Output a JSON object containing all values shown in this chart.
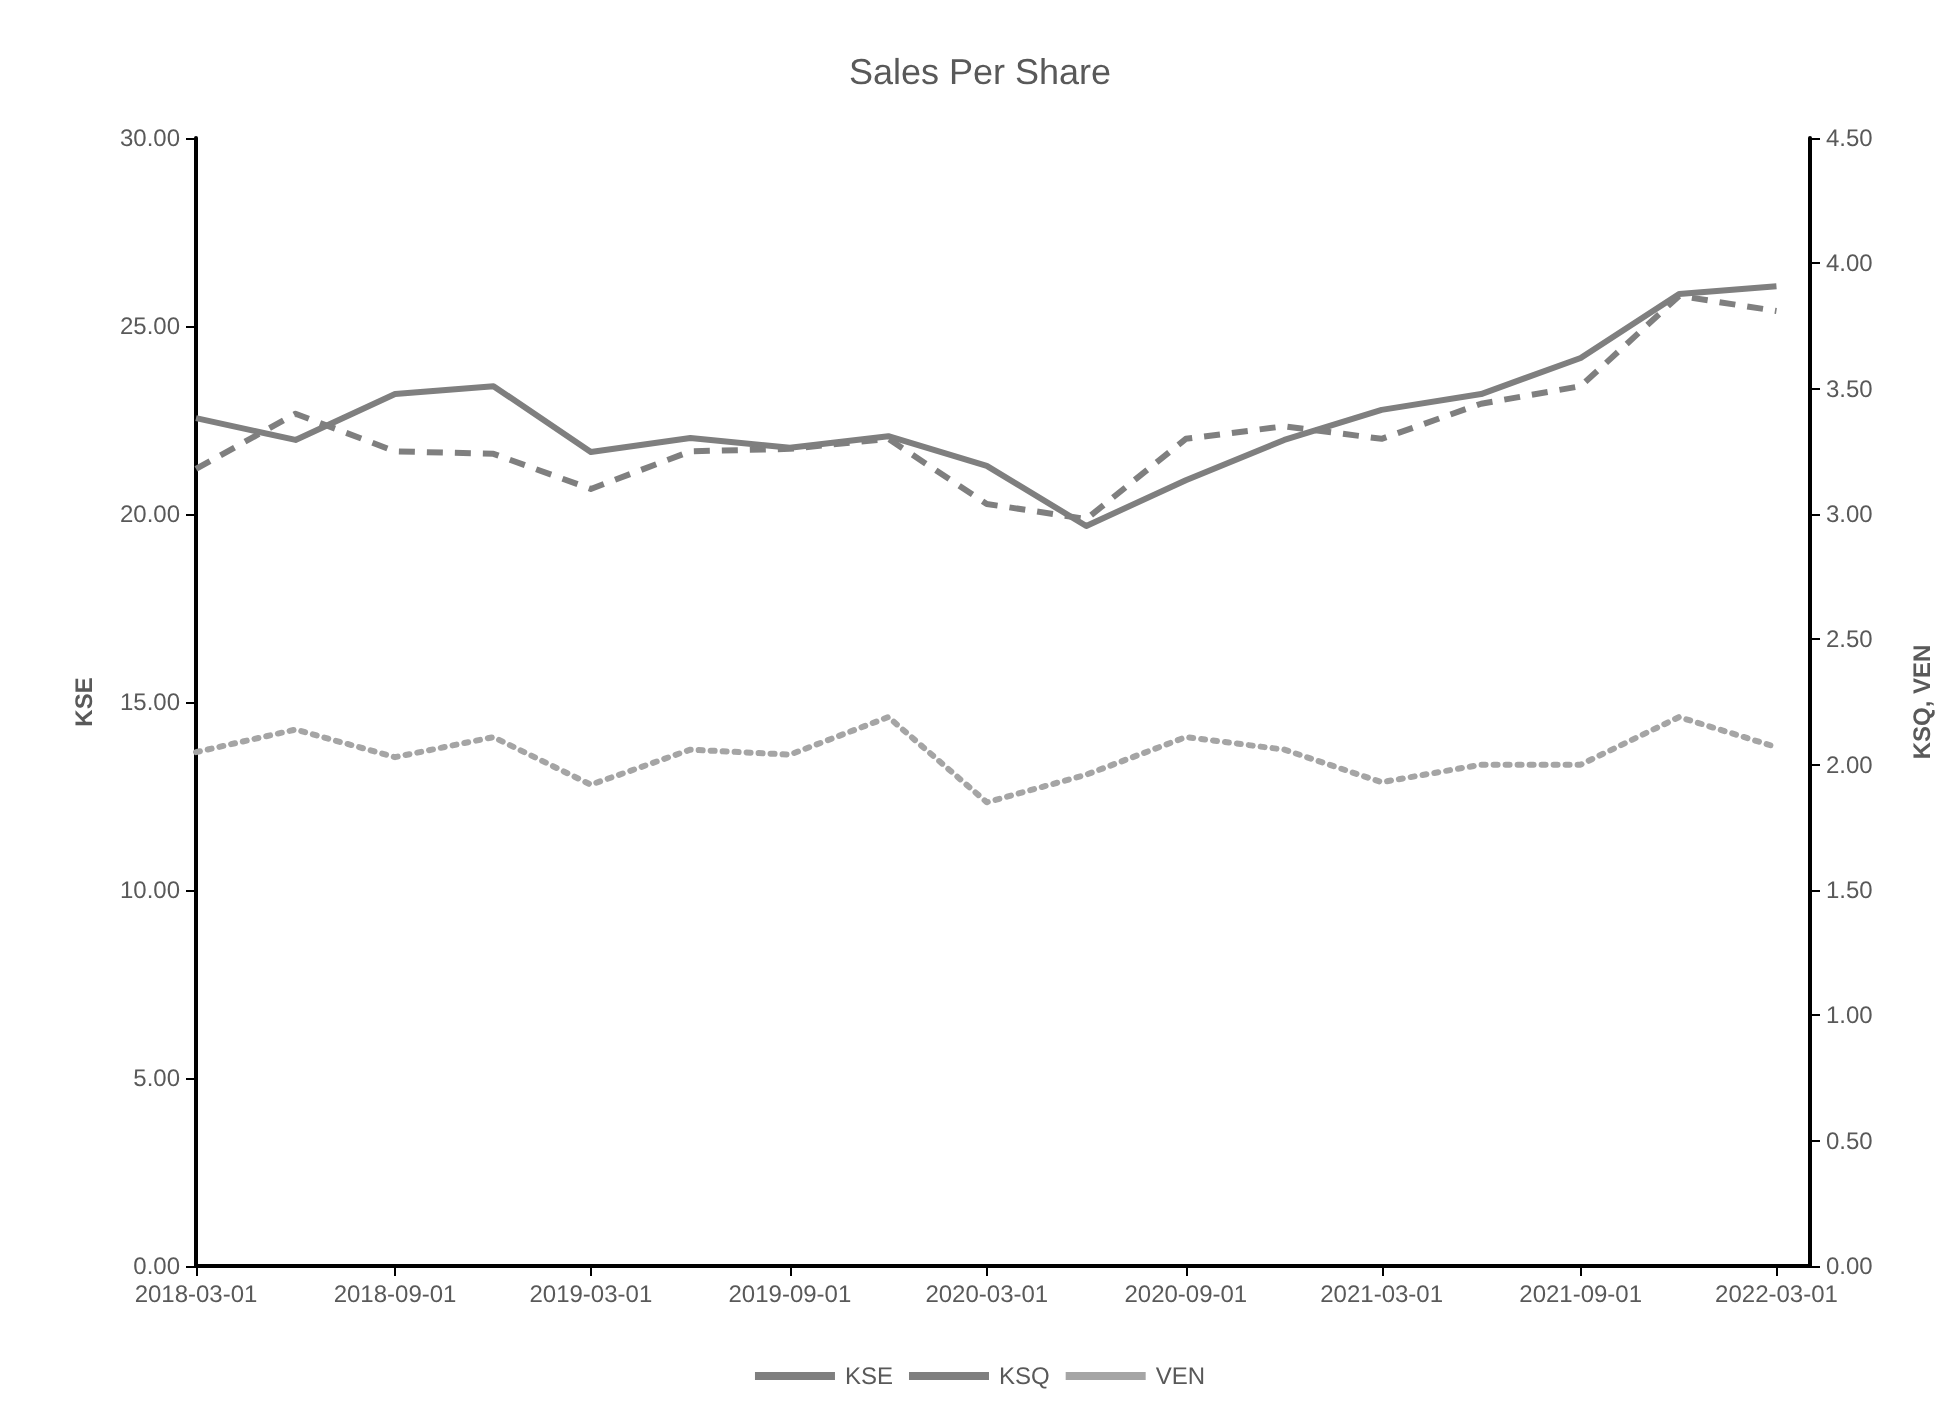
{
  "chart_data": {
    "type": "line",
    "title": "Sales Per Share",
    "ylabel": "KSE",
    "y2label": "KSQ, VEN",
    "x": [
      "2018-03-01",
      "2018-06-01",
      "2018-09-01",
      "2018-12-01",
      "2019-03-01",
      "2019-06-01",
      "2019-09-01",
      "2019-12-01",
      "2020-03-01",
      "2020-06-01",
      "2020-09-01",
      "2020-12-01",
      "2021-03-01",
      "2021-06-01",
      "2021-09-01",
      "2021-12-01",
      "2022-03-01"
    ],
    "series": [
      {
        "name": "KSE",
        "color": "#7f7f7f",
        "line_style": "solid",
        "values": [
          22.55,
          21.97,
          23.19,
          23.4,
          21.65,
          22.02,
          21.76,
          22.07,
          21.28,
          19.68,
          20.9,
          21.97,
          22.77,
          23.19,
          24.15,
          25.85,
          26.06
        ]
      },
      {
        "name": "KSQ",
        "color": "#7f7f7f",
        "line_style": "dashed",
        "axis": "y2",
        "values": [
          3.18,
          3.4,
          3.25,
          3.24,
          3.1,
          3.25,
          3.26,
          3.3,
          3.04,
          2.98,
          3.3,
          3.35,
          3.3,
          3.44,
          3.51,
          3.87,
          3.81
        ]
      },
      {
        "name": "VEN",
        "color": "#a5a5a5",
        "line_style": "dotted",
        "axis": "y2",
        "values": [
          2.05,
          2.14,
          2.03,
          2.11,
          1.92,
          2.06,
          2.04,
          2.19,
          1.85,
          1.96,
          2.11,
          2.06,
          1.93,
          2.0,
          2.0,
          2.19,
          2.07
        ]
      }
    ],
    "xlim": [
      "2018-03-01",
      "2022-04-01"
    ],
    "xticks": [
      "2018-03-01",
      "2018-09-01",
      "2019-03-01",
      "2019-09-01",
      "2020-03-01",
      "2020-09-01",
      "2021-03-01",
      "2021-09-01",
      "2022-03-01"
    ],
    "ylim": [
      0,
      30
    ],
    "yticks": [
      {
        "value": 0,
        "label": "0.00"
      },
      {
        "value": 5,
        "label": "5.00"
      },
      {
        "value": 10,
        "label": "10.00"
      },
      {
        "value": 15,
        "label": "15.00"
      },
      {
        "value": 20,
        "label": "20.00"
      },
      {
        "value": 25,
        "label": "25.00"
      },
      {
        "value": 30,
        "label": "30.00"
      }
    ],
    "y2lim": [
      0,
      4.5
    ],
    "y2ticks": [
      {
        "value": 0,
        "label": "0.00"
      },
      {
        "value": 0.5,
        "label": "0.50"
      },
      {
        "value": 1,
        "label": "1.00"
      },
      {
        "value": 1.5,
        "label": "1.50"
      },
      {
        "value": 2,
        "label": "2.00"
      },
      {
        "value": 2.5,
        "label": "2.50"
      },
      {
        "value": 3,
        "label": "3.00"
      },
      {
        "value": 3.5,
        "label": "3.50"
      },
      {
        "value": 4,
        "label": "4.00"
      },
      {
        "value": 4.5,
        "label": "4.50"
      }
    ],
    "grid": false,
    "legend": "bottom",
    "marker": "none"
  }
}
